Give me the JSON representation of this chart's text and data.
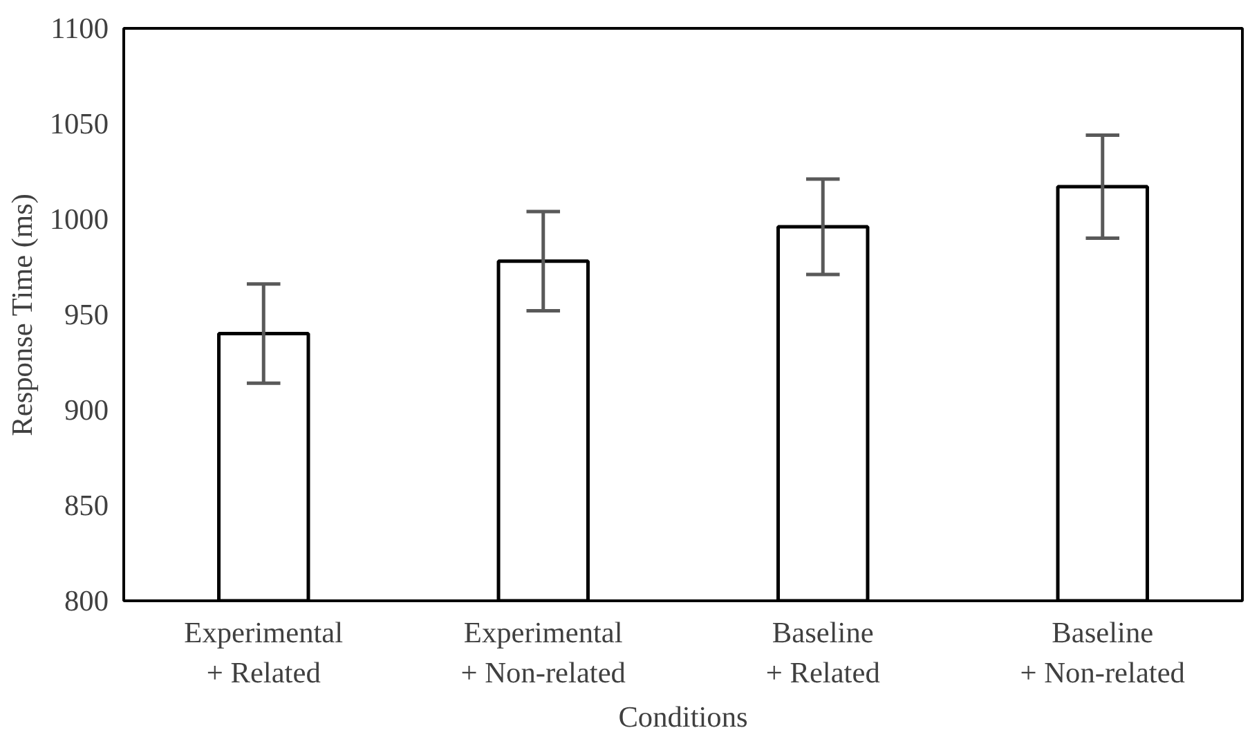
{
  "chart_data": {
    "type": "bar",
    "xlabel": "Conditions",
    "ylabel": "Response Time (ms)",
    "categories": [
      "Experimental\n+ Related",
      "Experimental\n+ Non-related",
      "Baseline\n+ Related",
      "Baseline\n+ Non-related"
    ],
    "values": [
      940,
      978,
      996,
      1017
    ],
    "errors": [
      26,
      26,
      25,
      27
    ],
    "color": "#ffffff",
    "ylim": [
      800,
      1100
    ],
    "yticks": [
      800,
      850,
      900,
      950,
      1000,
      1050,
      1100
    ],
    "grid": false
  }
}
